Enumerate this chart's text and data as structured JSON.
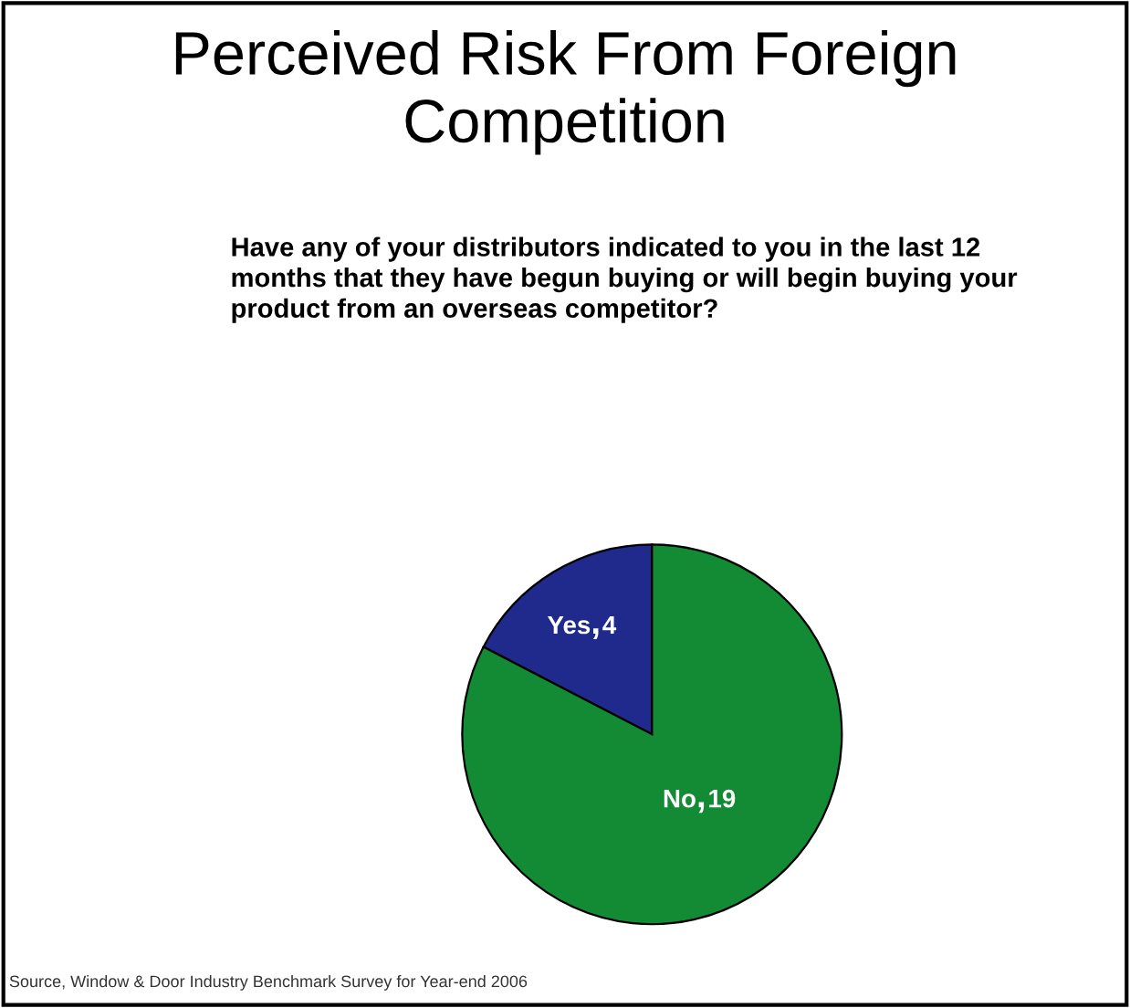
{
  "chart_data": {
    "type": "pie",
    "title": "Perceived Risk From Foreign\nCompetition",
    "subtitle": "Have any of your distributors indicated to you in the last 12\nmonths that they have begun buying or will begin buying your\nproduct from an overseas competitor?",
    "categories": [
      "Yes",
      "No"
    ],
    "values": [
      4,
      19
    ],
    "colors": [
      "#1f2a8c",
      "#138a34"
    ],
    "data_labels": true,
    "legend": false,
    "annotations": [
      "Source, Window & Door Industry Benchmark Survey for Year-end 2006"
    ]
  }
}
